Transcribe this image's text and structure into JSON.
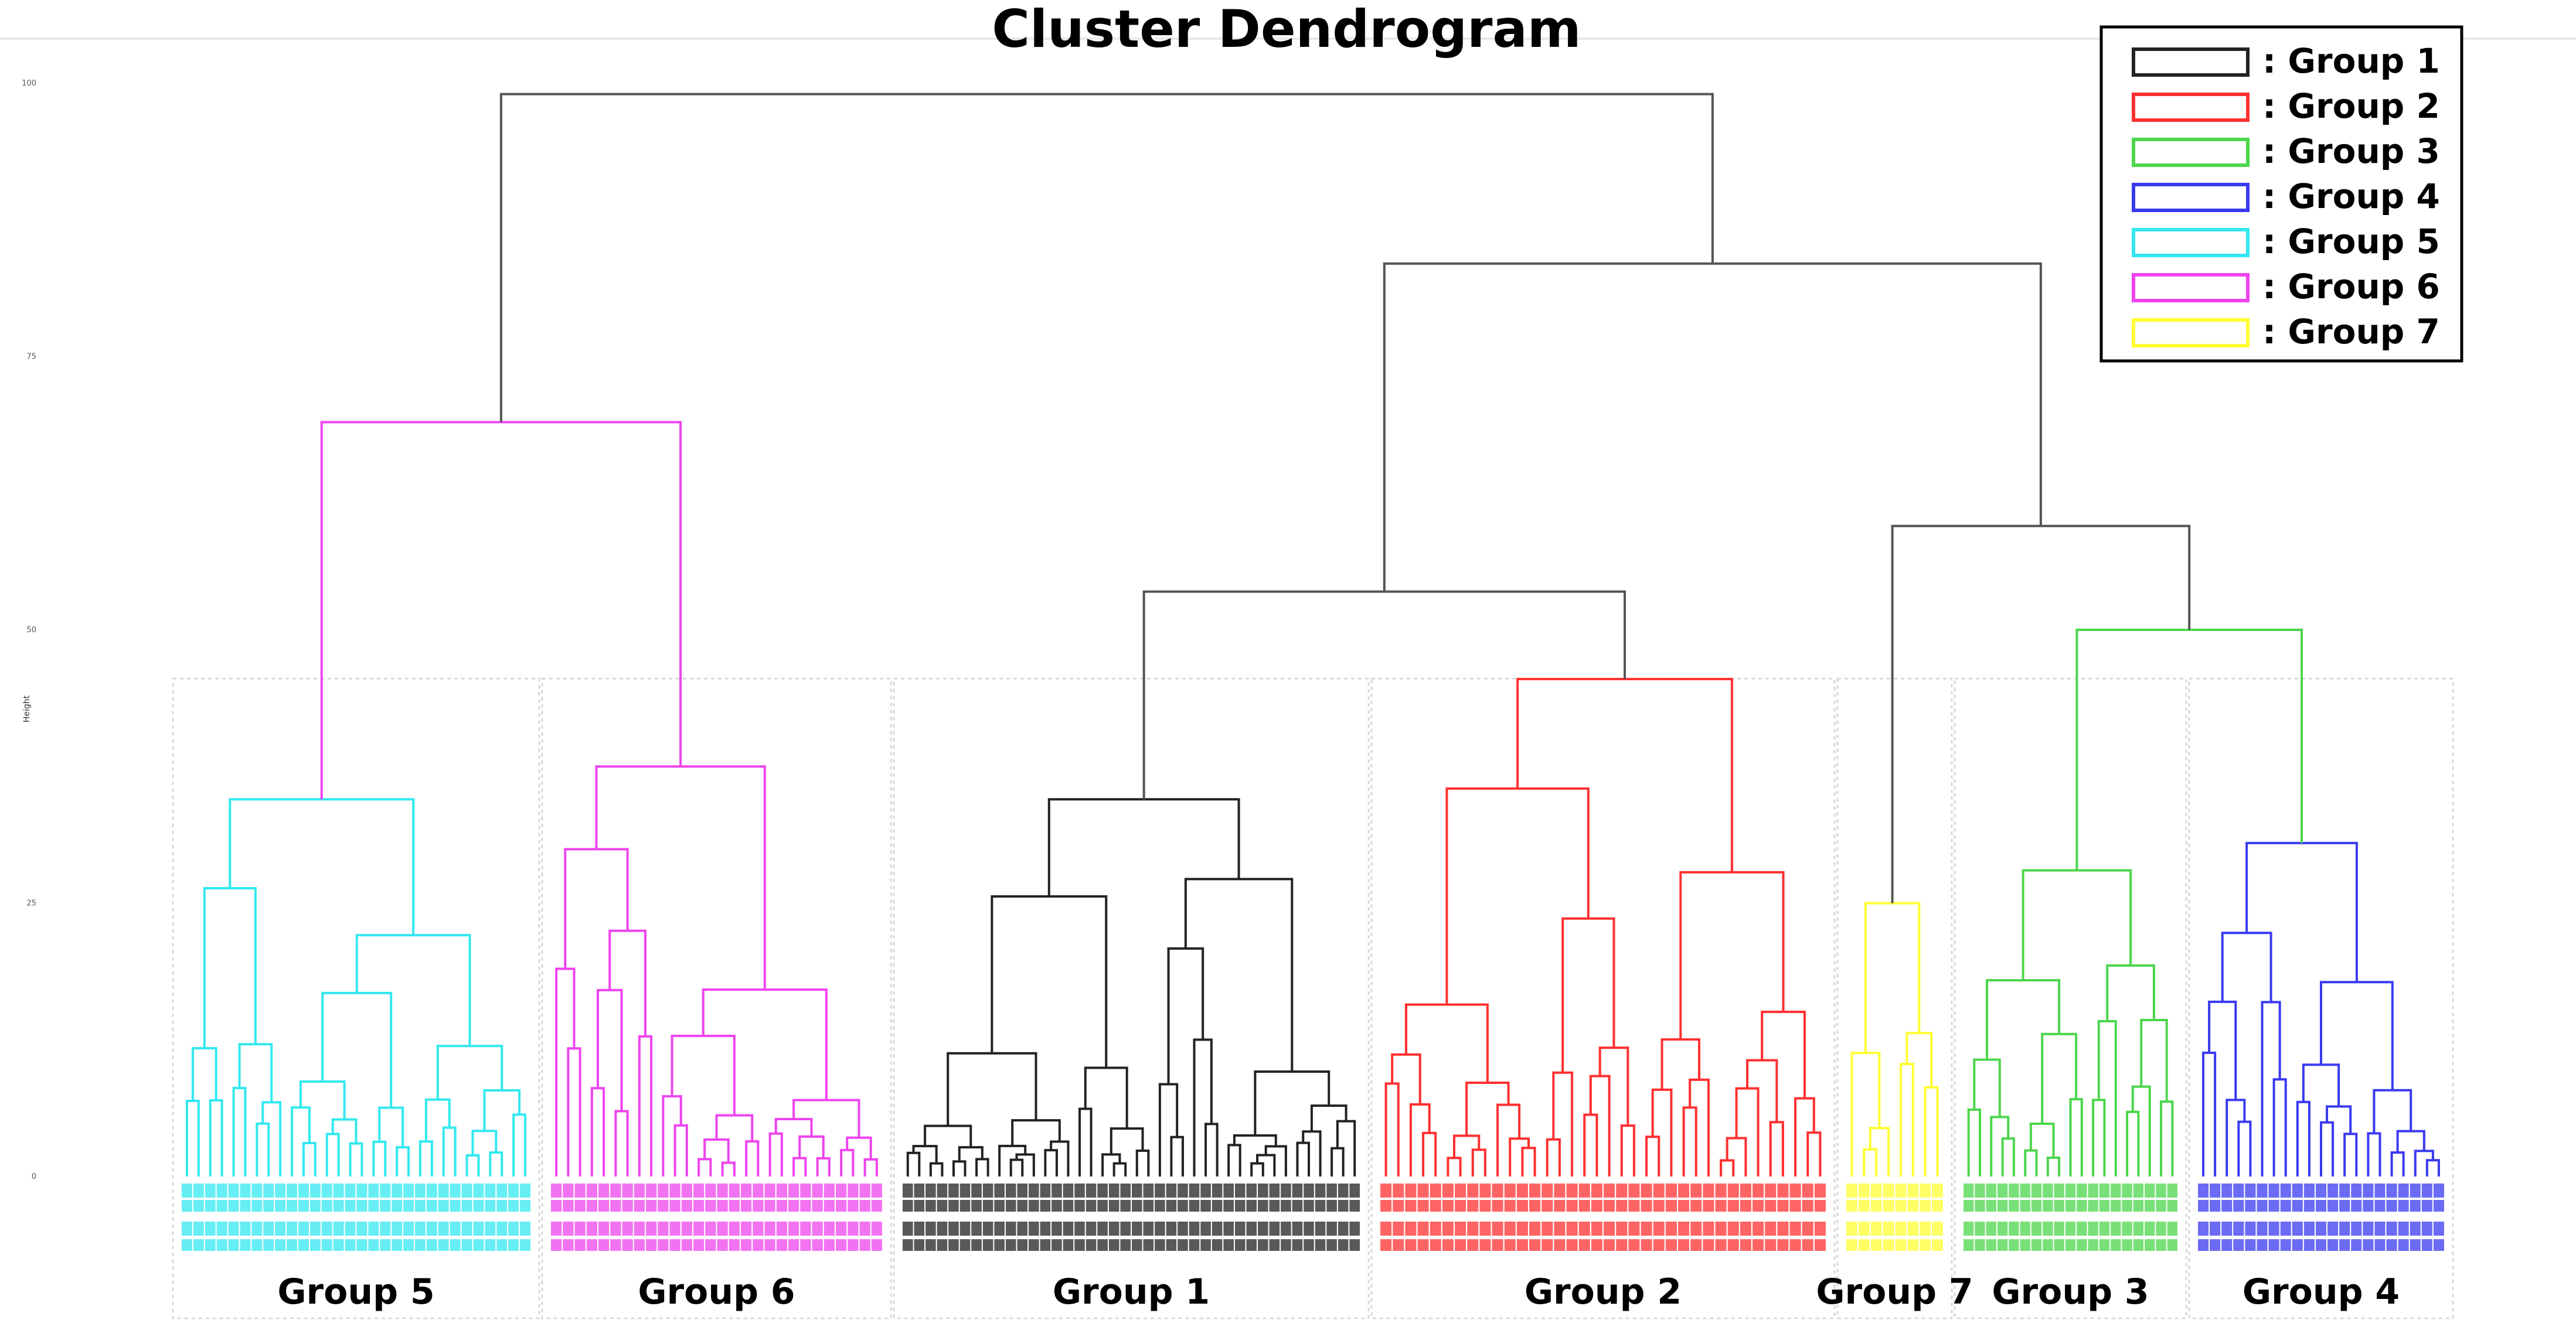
{
  "chart_data": {
    "type": "dendrogram",
    "title": "Cluster Dendrogram",
    "ylabel": "Height",
    "ylim": [
      0,
      100
    ],
    "yticks": [
      "100",
      "75",
      "50",
      "25",
      "0"
    ],
    "legend": {
      "position": "top-right",
      "items": [
        {
          "label": ": Group 1",
          "color": "#222222"
        },
        {
          "label": ": Group 2",
          "color": "#ff3030"
        },
        {
          "label": ": Group 3",
          "color": "#4cd64c"
        },
        {
          "label": ": Group 4",
          "color": "#3a3af0"
        },
        {
          "label": ": Group 5",
          "color": "#33e8f0"
        },
        {
          "label": ": Group 6",
          "color": "#ee44ee"
        },
        {
          "label": ": Group 7",
          "color": "#ffff33"
        }
      ]
    },
    "groups_left_to_right": [
      {
        "name": "Group 5",
        "color": "#33e8f0",
        "merge_height": 34.5
      },
      {
        "name": "Group 6",
        "color": "#ee44ee",
        "merge_height": 37.5
      },
      {
        "name": "Group 1",
        "color": "#222222",
        "merge_height": 34.5
      },
      {
        "name": "Group 2",
        "color": "#ff3030",
        "merge_height": 45.5
      },
      {
        "name": "Group 7",
        "color": "#ffff33",
        "merge_height": 25
      },
      {
        "name": "Group 3",
        "color": "#4cd64c",
        "merge_height": 28
      },
      {
        "name": "Group 4",
        "color": "#3a3af0",
        "merge_height": 30.5
      }
    ],
    "merges": [
      {
        "join": [
          "Group 5",
          "Group 6"
        ],
        "height": 69
      },
      {
        "join": [
          "Group 1",
          "Group 2"
        ],
        "height": 53.5
      },
      {
        "join": [
          "Group 3",
          "Group 4"
        ],
        "height": 50
      },
      {
        "join": [
          "Group 7",
          "Group 3+4"
        ],
        "height": 59.5
      },
      {
        "join": [
          "Group 1+2",
          "Group 7+3+4"
        ],
        "height": 83.5
      },
      {
        "join": [
          "Group 5+6",
          "Group 1+2+7+3+4"
        ],
        "height": 99
      }
    ]
  }
}
